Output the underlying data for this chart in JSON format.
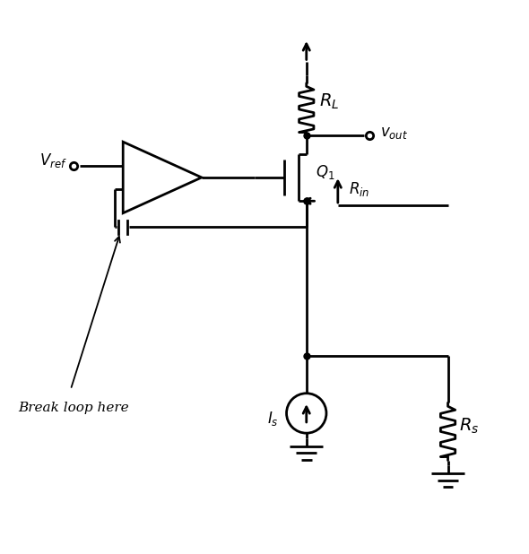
{
  "bg_color": "#ffffff",
  "line_color": "#000000",
  "line_width": 2.0,
  "figsize": [
    5.9,
    6.18
  ],
  "dpi": 100,
  "xlim": [
    0,
    10
  ],
  "ylim": [
    0,
    10
  ]
}
